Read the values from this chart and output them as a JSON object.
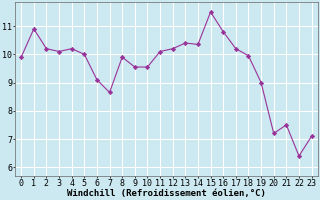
{
  "x": [
    0,
    1,
    2,
    3,
    4,
    5,
    6,
    7,
    8,
    9,
    10,
    11,
    12,
    13,
    14,
    15,
    16,
    17,
    18,
    19,
    20,
    21,
    22,
    23
  ],
  "y": [
    9.9,
    10.9,
    10.2,
    10.1,
    10.2,
    10.0,
    9.1,
    8.65,
    9.9,
    9.55,
    9.55,
    10.1,
    10.2,
    10.4,
    10.35,
    11.5,
    10.8,
    10.2,
    9.95,
    9.0,
    7.2,
    7.5,
    6.4,
    7.1
  ],
  "line_color": "#993399",
  "marker": "D",
  "markersize": 2.2,
  "linewidth": 0.8,
  "bg_color": "#cce8f0",
  "grid_color": "#ffffff",
  "xlabel": "Windchill (Refroidissement éolien,°C)",
  "xlim": [
    -0.5,
    23.5
  ],
  "ylim": [
    5.7,
    11.85
  ],
  "yticks": [
    6,
    7,
    8,
    9,
    10,
    11
  ],
  "xticks": [
    0,
    1,
    2,
    3,
    4,
    5,
    6,
    7,
    8,
    9,
    10,
    11,
    12,
    13,
    14,
    15,
    16,
    17,
    18,
    19,
    20,
    21,
    22,
    23
  ],
  "xlabel_fontsize": 6.5,
  "tick_fontsize": 6.0,
  "label_color": "#000000"
}
